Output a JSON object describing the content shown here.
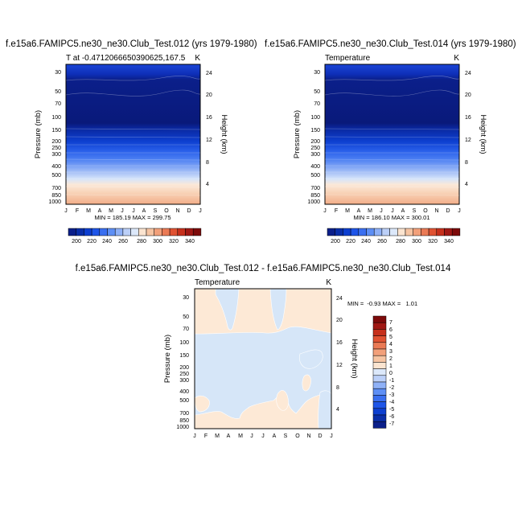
{
  "chart_data": [
    {
      "type": "contour",
      "title": "f.e15a6.FAMIPC5.ne30_ne30.Club_Test.012 (yrs 1979-1980)",
      "subtitle_left": "T at -0.4712066650390625,167.5",
      "subtitle_right": "K",
      "ylabel": "Pressure (mb)",
      "ylabel_right": "Height (km)",
      "x_ticks": [
        "J",
        "F",
        "M",
        "A",
        "M",
        "J",
        "J",
        "A",
        "S",
        "O",
        "N",
        "D",
        "J"
      ],
      "y_ticks": [
        "30",
        "50",
        "70",
        "100",
        "150",
        "200",
        "250",
        "300",
        "400",
        "500",
        "700",
        "850",
        "1000"
      ],
      "y_ticks_right": [
        "24",
        "20",
        "16",
        "12",
        "8",
        "4"
      ],
      "stats": "MIN = 185.19 MAX = 299.75",
      "min": 185.19,
      "max": 299.75,
      "colorbar_labels": [
        "200",
        "220",
        "240",
        "260",
        "280",
        "300",
        "320",
        "340"
      ],
      "colorbar_colors": [
        "#0b1f8a",
        "#0a2ea8",
        "#0d3fd0",
        "#1e55e8",
        "#3a6ff0",
        "#5e8ff5",
        "#8fb1f7",
        "#bcd0f8",
        "#dce8fa",
        "#fbe4d0",
        "#f6c4a2",
        "#f2a07a",
        "#ea7a55",
        "#e05232",
        "#c6301c",
        "#a01814",
        "#7d0a0a"
      ]
    },
    {
      "type": "contour",
      "title": "f.e15a6.FAMIPC5.ne30_ne30.Club_Test.014 (yrs 1979-1980)",
      "subtitle_left": "Temperature",
      "subtitle_right": "K",
      "ylabel": "Pressure (mb)",
      "ylabel_right": "Height (km)",
      "x_ticks": [
        "J",
        "F",
        "M",
        "A",
        "M",
        "J",
        "J",
        "A",
        "S",
        "O",
        "N",
        "D",
        "J"
      ],
      "y_ticks": [
        "30",
        "50",
        "70",
        "100",
        "150",
        "200",
        "250",
        "300",
        "400",
        "500",
        "700",
        "850",
        "1000"
      ],
      "y_ticks_right": [
        "24",
        "20",
        "16",
        "12",
        "8",
        "4"
      ],
      "stats": "MIN = 186.10 MAX = 300.01",
      "min": 186.1,
      "max": 300.01,
      "colorbar_labels": [
        "200",
        "220",
        "240",
        "260",
        "280",
        "300",
        "320",
        "340"
      ]
    },
    {
      "type": "contour",
      "title": "f.e15a6.FAMIPC5.ne30_ne30.Club_Test.012 - f.e15a6.FAMIPC5.ne30_ne30.Club_Test.014",
      "subtitle_left": "Temperature",
      "subtitle_right": "K",
      "ylabel": "Pressure (mb)",
      "ylabel_right": "Height (km)",
      "x_ticks": [
        "J",
        "F",
        "M",
        "A",
        "M",
        "J",
        "J",
        "A",
        "S",
        "O",
        "N",
        "D",
        "J"
      ],
      "y_ticks": [
        "30",
        "50",
        "70",
        "100",
        "150",
        "200",
        "250",
        "300",
        "400",
        "500",
        "700",
        "850",
        "1000"
      ],
      "y_ticks_right": [
        "24",
        "20",
        "16",
        "12",
        "8",
        "4"
      ],
      "stats": "MIN =  -0.93 MAX =   1.01",
      "min": -0.93,
      "max": 1.01,
      "colorbar_labels": [
        "7",
        "6",
        "5",
        "4",
        "3",
        "2",
        "1",
        "0",
        "-1",
        "-2",
        "-3",
        "-4",
        "-5",
        "-6",
        "-7"
      ],
      "fill_positive": "#fde9d6",
      "fill_negative": "#d6e6f8"
    }
  ]
}
